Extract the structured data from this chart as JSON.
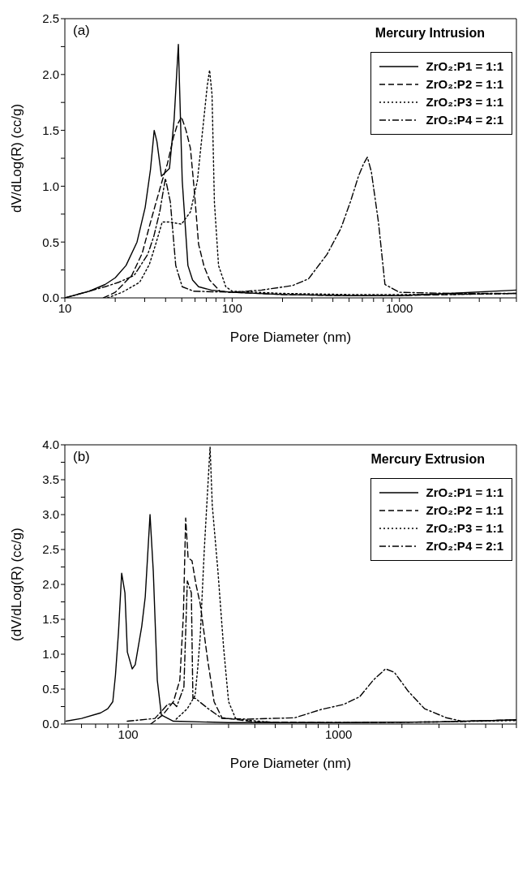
{
  "chart_data": [
    {
      "type": "line",
      "title": "Mercury Intrusion",
      "xlabel": "Pore Diameter (nm)",
      "ylabel": "dV/dLog(R) (cc/g)",
      "annotations": [
        "(a)"
      ],
      "log": "x",
      "legend": "top right",
      "xlim": [
        10,
        5000
      ],
      "xticks": [
        10,
        {
          "value": 20,
          "label": null
        },
        {
          "value": 30,
          "label": null
        },
        {
          "value": 40,
          "label": null
        },
        {
          "value": 50,
          "label": null
        },
        {
          "value": 60,
          "label": null
        },
        {
          "value": 70,
          "label": null
        },
        {
          "value": 80,
          "label": null
        },
        {
          "value": 90,
          "label": null
        },
        100,
        {
          "value": 200,
          "label": null
        },
        {
          "value": 300,
          "label": null
        },
        {
          "value": 400,
          "label": null
        },
        {
          "value": 500,
          "label": null
        },
        {
          "value": 600,
          "label": null
        },
        {
          "value": 700,
          "label": null
        },
        {
          "value": 800,
          "label": null
        },
        {
          "value": 900,
          "label": null
        },
        1000,
        {
          "value": 2000,
          "label": null
        },
        {
          "value": 3000,
          "label": null
        },
        {
          "value": 4000,
          "label": null
        },
        {
          "value": 5000,
          "label": null
        }
      ],
      "ylim": [
        0,
        2.5
      ],
      "yticks": [
        {
          "value": 0,
          "label": "0.0"
        },
        {
          "value": 0.25,
          "label": null
        },
        {
          "value": 0.5,
          "label": "0.5"
        },
        {
          "value": 0.75,
          "label": null
        },
        {
          "value": 1,
          "label": "1.0"
        },
        {
          "value": 1.25,
          "label": null
        },
        {
          "value": 1.5,
          "label": "1.5"
        },
        {
          "value": 1.75,
          "label": null
        },
        {
          "value": 2,
          "label": "2.0"
        },
        {
          "value": 2.25,
          "label": null
        },
        {
          "value": 2.5,
          "label": "2.5"
        }
      ],
      "series": [
        {
          "name": "ZrO₂:P1 = 1:1",
          "color": "#000000",
          "line_style": "solid",
          "x": [
            10,
            14,
            17.4,
            20,
            23.2,
            27,
            30.2,
            32.5,
            34.2,
            35.5,
            37.8,
            42.2,
            45,
            47.7,
            50.3,
            54.4,
            58,
            63,
            75,
            100,
            200,
            500,
            1000,
            2000,
            5000
          ],
          "values": [
            0.0,
            0.06,
            0.12,
            0.18,
            0.29,
            0.5,
            0.81,
            1.15,
            1.5,
            1.4,
            1.09,
            1.16,
            1.6,
            2.27,
            1.05,
            0.29,
            0.16,
            0.1,
            0.07,
            0.05,
            0.03,
            0.02,
            0.02,
            0.04,
            0.07
          ]
        },
        {
          "name": "ZrO₂:P2 = 1:1",
          "color": "#000000",
          "line_style": "dashed",
          "x": [
            17,
            20,
            25.1,
            29,
            32.4,
            35,
            38.2,
            41,
            44.6,
            47,
            49.8,
            53,
            56.3,
            59.4,
            63,
            68,
            73.3,
            84.6,
            100,
            200,
            500,
            1000,
            2000,
            5000
          ],
          "values": [
            0.0,
            0.05,
            0.2,
            0.4,
            0.67,
            0.85,
            1.05,
            1.2,
            1.44,
            1.55,
            1.62,
            1.5,
            1.34,
            0.96,
            0.48,
            0.28,
            0.16,
            0.06,
            0.05,
            0.03,
            0.02,
            0.02,
            0.03,
            0.04
          ]
        },
        {
          "name": "ZrO₂:P3 = 1:1",
          "color": "#000000",
          "line_style": "dotted",
          "x": [
            18,
            22,
            28,
            32,
            34.9,
            38.2,
            42,
            49.8,
            56.3,
            62,
            65,
            67.9,
            71,
            73.3,
            75.8,
            78.3,
            82.9,
            91.6,
            100,
            200,
            500,
            1000,
            2000,
            5000
          ],
          "values": [
            0.0,
            0.05,
            0.14,
            0.3,
            0.48,
            0.68,
            0.68,
            0.66,
            0.77,
            1.05,
            1.35,
            1.62,
            1.9,
            2.04,
            1.82,
            0.86,
            0.29,
            0.1,
            0.06,
            0.04,
            0.03,
            0.03,
            0.03,
            0.04
          ]
        },
        {
          "name": "ZrO₂:P4 = 2:1",
          "color": "#000000",
          "line_style": "dashdot",
          "x": [
            10,
            14,
            17.4,
            21,
            25.9,
            31.3,
            34,
            36.9,
            39.9,
            42.7,
            46,
            50.3,
            58.8,
            100,
            150,
            229,
            286,
            369,
            446,
            509,
            569,
            610,
            643,
            679,
            750,
            819,
            1000,
            2000,
            5000
          ],
          "values": [
            0.0,
            0.06,
            0.1,
            0.14,
            0.2,
            0.39,
            0.55,
            0.77,
            1.07,
            0.86,
            0.29,
            0.1,
            0.06,
            0.05,
            0.07,
            0.11,
            0.17,
            0.39,
            0.62,
            0.86,
            1.09,
            1.2,
            1.26,
            1.13,
            0.67,
            0.12,
            0.05,
            0.04,
            0.04
          ]
        }
      ]
    },
    {
      "type": "line",
      "title": "Mercury Extrusion",
      "xlabel": "Pore Diameter (nm)",
      "ylabel": "(dV/dLog(R) (cc/g)",
      "annotations": [
        "(b)"
      ],
      "log": "x",
      "legend": "top right",
      "xlim": [
        50,
        7000
      ],
      "xticks": [
        {
          "value": 60,
          "label": null
        },
        {
          "value": 70,
          "label": null
        },
        {
          "value": 80,
          "label": null
        },
        {
          "value": 90,
          "label": null
        },
        100,
        {
          "value": 200,
          "label": null
        },
        {
          "value": 300,
          "label": null
        },
        {
          "value": 400,
          "label": null
        },
        {
          "value": 500,
          "label": null
        },
        {
          "value": 600,
          "label": null
        },
        {
          "value": 700,
          "label": null
        },
        {
          "value": 800,
          "label": null
        },
        {
          "value": 900,
          "label": null
        },
        1000,
        {
          "value": 2000,
          "label": null
        },
        {
          "value": 3000,
          "label": null
        },
        {
          "value": 4000,
          "label": null
        },
        {
          "value": 5000,
          "label": null
        },
        {
          "value": 6000,
          "label": null
        },
        {
          "value": 7000,
          "label": null
        }
      ],
      "ylim": [
        0,
        4
      ],
      "yticks": [
        {
          "value": 0,
          "label": "0.0"
        },
        {
          "value": 0.25,
          "label": null
        },
        {
          "value": 0.5,
          "label": "0.5"
        },
        {
          "value": 0.75,
          "label": null
        },
        {
          "value": 1,
          "label": "1.0"
        },
        {
          "value": 1.25,
          "label": null
        },
        {
          "value": 1.5,
          "label": "1.5"
        },
        {
          "value": 1.75,
          "label": null
        },
        {
          "value": 2,
          "label": "2.0"
        },
        {
          "value": 2.25,
          "label": null
        },
        {
          "value": 2.5,
          "label": "2.5"
        },
        {
          "value": 2.75,
          "label": null
        },
        {
          "value": 3,
          "label": "3.0"
        },
        {
          "value": 3.25,
          "label": null
        },
        {
          "value": 3.5,
          "label": "3.5"
        },
        {
          "value": 3.75,
          "label": null
        },
        {
          "value": 4,
          "label": "4.0"
        }
      ],
      "series": [
        {
          "name": "ZrO₂:P1 = 1:1",
          "color": "#000000",
          "line_style": "solid",
          "x": [
            50.6,
            60,
            74,
            80,
            84.5,
            87,
            89.9,
            93.1,
            96.5,
            99.1,
            104.5,
            108,
            112,
            116,
            120.5,
            127,
            131.6,
            137.5,
            143.8,
            164,
            300,
            1000,
            3000,
            7000
          ],
          "values": [
            0.04,
            0.08,
            0.16,
            0.22,
            0.32,
            0.7,
            1.31,
            2.16,
            1.88,
            1.03,
            0.79,
            0.85,
            1.13,
            1.4,
            1.82,
            3.0,
            2.19,
            0.63,
            0.13,
            0.04,
            0.02,
            0.02,
            0.03,
            0.06
          ]
        },
        {
          "name": "ZrO₂:P2 = 1:1",
          "color": "#000000",
          "line_style": "dashed",
          "x": [
            128,
            146,
            164,
            176,
            183,
            187.6,
            192.6,
            201,
            210,
            220,
            238,
            256,
            279,
            400,
            1000,
            3000,
            7000
          ],
          "values": [
            0.0,
            0.13,
            0.32,
            0.63,
            1.57,
            2.95,
            2.38,
            2.34,
            2.0,
            1.72,
            0.94,
            0.32,
            0.09,
            0.03,
            0.02,
            0.03,
            0.06
          ]
        },
        {
          "name": "ZrO₂:P3 = 1:1",
          "color": "#000000",
          "line_style": "dotted",
          "x": [
            169,
            191,
            208,
            214,
            220,
            230,
            238,
            245,
            251,
            267,
            284,
            300,
            325,
            500,
            1000,
            3000,
            7000
          ],
          "values": [
            0.07,
            0.22,
            0.41,
            0.8,
            1.26,
            2.5,
            3.3,
            3.97,
            3.13,
            2.19,
            1.1,
            0.32,
            0.07,
            0.02,
            0.02,
            0.03,
            0.05
          ]
        },
        {
          "name": "ZrO₂:P4 = 2:1",
          "color": "#000000",
          "line_style": "dashdot",
          "x": [
            99,
            134,
            154,
            164,
            170,
            184,
            191,
            199.6,
            203,
            208,
            240,
            279,
            374,
            620,
            830,
            1055,
            1259,
            1463,
            1671,
            1842,
            2142,
            2560,
            3250,
            3875,
            7000
          ],
          "values": [
            0.04,
            0.08,
            0.28,
            0.3,
            0.25,
            0.53,
            2.05,
            1.88,
            0.37,
            0.37,
            0.22,
            0.08,
            0.07,
            0.09,
            0.21,
            0.28,
            0.39,
            0.63,
            0.79,
            0.74,
            0.47,
            0.22,
            0.09,
            0.04,
            0.06
          ]
        }
      ]
    }
  ]
}
